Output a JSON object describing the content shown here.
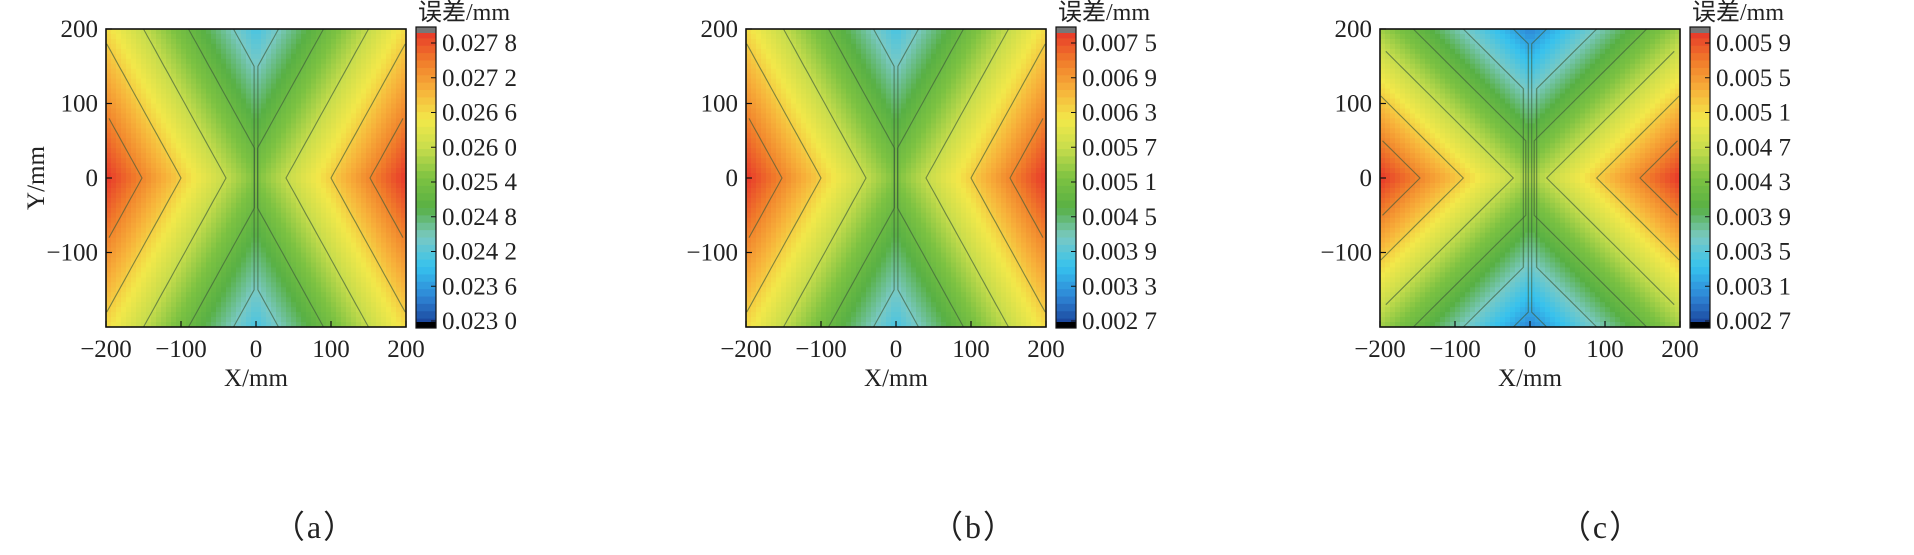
{
  "figure_note": "",
  "chart_data": [
    {
      "type": "heatmap",
      "panel": "a",
      "caption": "（a）",
      "xlabel": "X/mm",
      "ylabel": "Y/mm",
      "xlim": [
        -200,
        200
      ],
      "ylim": [
        -200,
        200
      ],
      "xticks": [
        "−200",
        "−100",
        "0",
        "100",
        "200"
      ],
      "yticks": [
        "200",
        "100",
        "0",
        "−100"
      ],
      "colorbar_title": "误差/mm",
      "colorbar_ticks": [
        "0.027 8",
        "0.027 2",
        "0.026 6",
        "0.026 0",
        "0.025 4",
        "0.024 8",
        "0.024 2",
        "0.023 6",
        "0.023 0"
      ],
      "value_range": [
        0.023,
        0.0278
      ],
      "pattern": "x_driven",
      "corner_value": 0.0255,
      "center_value": 0.0235,
      "edge_mid_value": 0.0278,
      "contour_interval": 0.0006
    },
    {
      "type": "heatmap",
      "panel": "b",
      "caption": "（b）",
      "xlabel": "X/mm",
      "ylabel": "",
      "xlim": [
        -200,
        200
      ],
      "ylim": [
        -200,
        200
      ],
      "xticks": [
        "−200",
        "−100",
        "0",
        "100",
        "200"
      ],
      "yticks": [
        "200",
        "100",
        "0",
        "−100"
      ],
      "colorbar_title": "误差/mm",
      "colorbar_ticks": [
        "0.007 5",
        "0.006 9",
        "0.006 3",
        "0.005 7",
        "0.005 1",
        "0.004 5",
        "0.003 9",
        "0.003 3",
        "0.002 7"
      ],
      "value_range": [
        0.0027,
        0.0075
      ],
      "pattern": "x_driven",
      "corner_value": 0.0053,
      "center_value": 0.0042,
      "edge_mid_value": 0.0075,
      "contour_interval": 0.0006
    },
    {
      "type": "heatmap",
      "panel": "c",
      "caption": "（c）",
      "xlabel": "X/mm",
      "ylabel": "",
      "xlim": [
        -200,
        200
      ],
      "ylim": [
        -200,
        200
      ],
      "xticks": [
        "−200",
        "−100",
        "0",
        "100",
        "200"
      ],
      "yticks": [
        "200",
        "100",
        "0",
        "−100"
      ],
      "colorbar_title": "误差/mm",
      "colorbar_ticks": [
        "0.005 9",
        "0.005 5",
        "0.005 1",
        "0.004 7",
        "0.004 3",
        "0.003 9",
        "0.003 5",
        "0.003 1",
        "0.002 7"
      ],
      "value_range": [
        0.0027,
        0.0059
      ],
      "pattern": "diagonal_x",
      "corner_value": 0.0052,
      "center_value": 0.0049,
      "edge_mid_value": 0.0059,
      "contour_interval": 0.0004
    }
  ],
  "colormap": [
    "#1a3f96",
    "#2e86d6",
    "#36c2ee",
    "#79c9c4",
    "#58b044",
    "#7cc242",
    "#c6dc4c",
    "#f2e84a",
    "#f7b13a",
    "#f07a2a",
    "#e7362a"
  ]
}
